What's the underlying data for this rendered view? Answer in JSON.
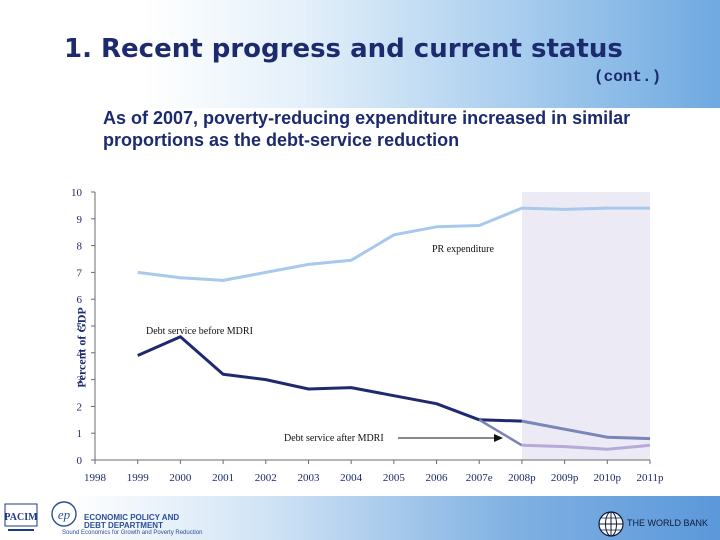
{
  "slide": {
    "title": "1. Recent progress and current status",
    "title_cont": "(cont.)",
    "intro": "As of 2007, poverty-reducing expenditure increased in similar proportions as the debt-service reduction"
  },
  "footer": {
    "pacim_logo": "PACIM",
    "epdd_line1": "ECONOMIC POLICY AND",
    "epdd_line2": "DEBT DEPARTMENT",
    "epdd_line3": "Sound Economics for Growth and Poverty Reduction",
    "world_bank": "THE WORLD BANK"
  },
  "chart_data": {
    "type": "line",
    "ylabel": "Percent of GDP",
    "ylim": [
      0,
      10
    ],
    "yticks": [
      0,
      1,
      2,
      3,
      4,
      5,
      6,
      7,
      8,
      9,
      10
    ],
    "categories": [
      "1998",
      "1999",
      "2000",
      "2001",
      "2002",
      "2003",
      "2004",
      "2005",
      "2006",
      "2007e",
      "2008p",
      "2009p",
      "2010p",
      "2011p"
    ],
    "projection_start": "2008p",
    "series": [
      {
        "name": "PR expenditure",
        "color": "#a9c9ec",
        "values": [
          null,
          7.0,
          6.8,
          6.7,
          7.0,
          7.3,
          7.45,
          8.4,
          8.7,
          8.75,
          9.4,
          9.35,
          9.4,
          9.4
        ]
      },
      {
        "name": "Debt service before MDRI",
        "color": "#1f2a6e",
        "values": [
          null,
          3.9,
          4.6,
          3.2,
          3.0,
          2.65,
          2.7,
          2.4,
          2.1,
          1.5,
          1.45,
          null,
          null,
          null
        ]
      },
      {
        "name": "Debt service before MDRI (projected)",
        "color": "#7a85b8",
        "values": [
          null,
          null,
          null,
          null,
          null,
          null,
          null,
          null,
          null,
          null,
          1.45,
          1.15,
          0.85,
          0.8
        ]
      },
      {
        "name": "Debt service after MDRI",
        "color": "#7b83b6",
        "values": [
          null,
          null,
          null,
          null,
          null,
          null,
          null,
          null,
          null,
          1.5,
          0.55,
          null,
          null,
          null
        ]
      },
      {
        "name": "Debt service after MDRI (projected)",
        "color": "#b7a9d8",
        "values": [
          null,
          null,
          null,
          null,
          null,
          null,
          null,
          null,
          null,
          null,
          0.55,
          0.5,
          0.4,
          0.55
        ]
      }
    ],
    "annotations": [
      {
        "text": "PR expenditure",
        "series": "PR expenditure"
      },
      {
        "text": "Debt service before MDRI",
        "series": "Debt service before MDRI"
      },
      {
        "text": "Debt service after MDRI",
        "series": "Debt service after MDRI"
      }
    ]
  }
}
